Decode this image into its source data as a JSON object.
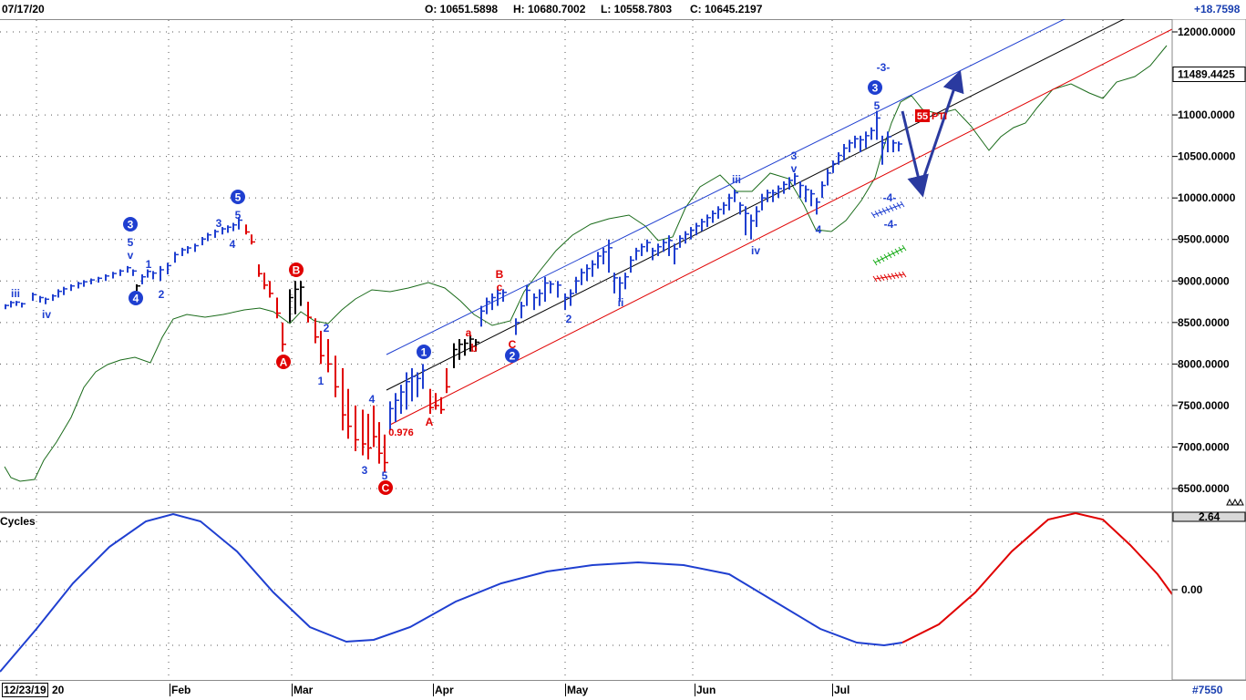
{
  "header": {
    "date": "07/17/20",
    "open_label": "O: 10651.5898",
    "high_label": "H: 10680.7002",
    "low_label": "L: 10558.7803",
    "close_label": "C: 10645.2197",
    "change": "+18.7598"
  },
  "footer": {
    "start_date": "12/23/19",
    "start_date_suffix": "20",
    "id": "#7550"
  },
  "chart_data": [
    {
      "type": "bar",
      "description_kind": "ohlc-price",
      "ylim": [
        6300,
        12100
      ],
      "y_ticks": [
        "12000.0000",
        "11000.0000",
        "10500.0000",
        "10000.0000",
        "9500.0000",
        "9000.0000",
        "8500.0000",
        "8000.0000",
        "7500.0000",
        "7000.0000",
        "6500.0000"
      ],
      "y_tick_values": [
        12000,
        11000,
        10500,
        10000,
        9500,
        9000,
        8500,
        8000,
        7500,
        7000,
        6500
      ],
      "last_price_label": "11489.4425",
      "x_labels": [
        "Feb",
        "Mar",
        "Apr",
        "May",
        "Jun",
        "Jul"
      ],
      "grid": true,
      "wave_labels": [
        {
          "text": "iii",
          "color": "#1f3fd0",
          "circle": false
        },
        {
          "text": "iv",
          "color": "#1f3fd0",
          "circle": false
        },
        {
          "text": "3",
          "color": "#1f3fd0",
          "circle": true
        },
        {
          "text": "5",
          "color": "#1f3fd0",
          "circle": false
        },
        {
          "text": "v",
          "color": "#1f3fd0",
          "circle": false
        },
        {
          "text": "4",
          "color": "#1f3fd0",
          "circle": true
        },
        {
          "text": "1",
          "color": "#1f3fd0",
          "circle": false
        },
        {
          "text": "2",
          "color": "#1f3fd0",
          "circle": false
        },
        {
          "text": "3",
          "color": "#1f3fd0",
          "circle": false
        },
        {
          "text": "5",
          "color": "#1f3fd0",
          "circle": true
        },
        {
          "text": "5",
          "color": "#1f3fd0",
          "circle": false
        },
        {
          "text": "4",
          "color": "#1f3fd0",
          "circle": false
        },
        {
          "text": "B",
          "color": "#e00000",
          "circle": true
        },
        {
          "text": "A",
          "color": "#e00000",
          "circle": true
        },
        {
          "text": "2",
          "color": "#1f3fd0",
          "circle": false
        },
        {
          "text": "1",
          "color": "#1f3fd0",
          "circle": false
        },
        {
          "text": "4",
          "color": "#1f3fd0",
          "circle": false
        },
        {
          "text": "3",
          "color": "#1f3fd0",
          "circle": false
        },
        {
          "text": "5",
          "color": "#1f3fd0",
          "circle": false
        },
        {
          "text": "C",
          "color": "#e00000",
          "circle": true
        },
        {
          "text": "0.976",
          "color": "#e00000",
          "circle": false
        },
        {
          "text": "1",
          "color": "#1f3fd0",
          "circle": true
        },
        {
          "text": "A",
          "color": "#e00000",
          "circle": false
        },
        {
          "text": "a",
          "color": "#e00000",
          "circle": false
        },
        {
          "text": "b",
          "color": "#e00000",
          "circle": false
        },
        {
          "text": "B",
          "color": "#e00000",
          "circle": false
        },
        {
          "text": "c",
          "color": "#e00000",
          "circle": false
        },
        {
          "text": "C",
          "color": "#e00000",
          "circle": false
        },
        {
          "text": "2",
          "color": "#1f3fd0",
          "circle": true
        },
        {
          "text": "2",
          "color": "#1f3fd0",
          "circle": false
        },
        {
          "text": "ii",
          "color": "#1f3fd0",
          "circle": false
        },
        {
          "text": "iii",
          "color": "#1f3fd0",
          "circle": false
        },
        {
          "text": "iv",
          "color": "#1f3fd0",
          "circle": false
        },
        {
          "text": "3",
          "color": "#1f3fd0",
          "circle": false
        },
        {
          "text": "v",
          "color": "#1f3fd0",
          "circle": false
        },
        {
          "text": "4",
          "color": "#1f3fd0",
          "circle": false
        },
        {
          "text": "-3-",
          "color": "#1f3fd0",
          "circle": false
        },
        {
          "text": "3",
          "color": "#1f3fd0",
          "circle": true
        },
        {
          "text": "5",
          "color": "#1f3fd0",
          "circle": false
        },
        {
          "text": "-4-",
          "color": "#1f3fd0",
          "circle": false
        },
        {
          "text": "-4-",
          "color": "#1f3fd0",
          "circle": false
        }
      ],
      "marker_label": "55",
      "marker_suffix": "PTI",
      "colors": {
        "up": "#1f3fd0",
        "down": "#e00000",
        "neutral": "#000000",
        "oscillator": "#1a6b1a",
        "channel_top": "#1f3fd0",
        "channel_mid": "#000000",
        "channel_low": "#e00000"
      }
    },
    {
      "type": "line",
      "title": "Cycles",
      "y_ticks": [
        "2.64",
        "0.00"
      ],
      "y_tick_values": [
        2.64,
        0
      ],
      "series": [
        {
          "color": "#1f3fd0"
        },
        {
          "color": "#e00000"
        }
      ]
    }
  ]
}
